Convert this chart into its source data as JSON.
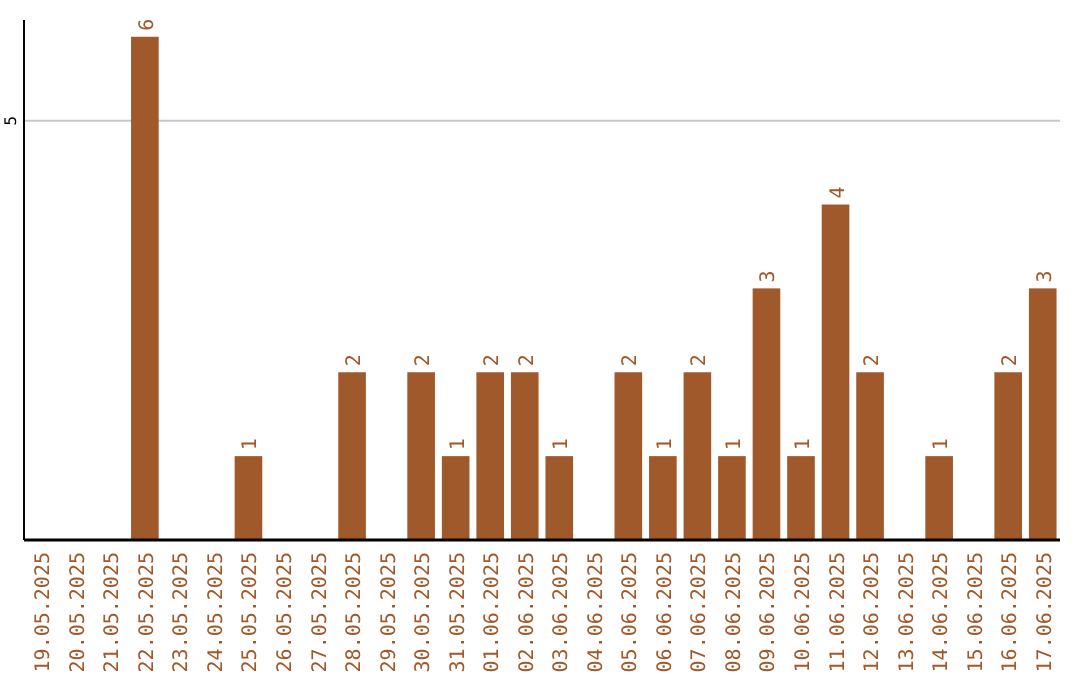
{
  "chart_data": {
    "type": "bar",
    "categories": [
      "19.05.2025",
      "20.05.2025",
      "21.05.2025",
      "22.05.2025",
      "23.05.2025",
      "24.05.2025",
      "25.05.2025",
      "26.05.2025",
      "27.05.2025",
      "28.05.2025",
      "29.05.2025",
      "30.05.2025",
      "31.05.2025",
      "01.06.2025",
      "02.06.2025",
      "03.06.2025",
      "04.06.2025",
      "05.06.2025",
      "06.06.2025",
      "07.06.2025",
      "08.06.2025",
      "09.06.2025",
      "10.06.2025",
      "11.06.2025",
      "12.06.2025",
      "13.06.2025",
      "14.06.2025",
      "15.06.2025",
      "16.06.2025",
      "17.06.2025"
    ],
    "values": [
      0,
      0,
      0,
      6,
      0,
      0,
      1,
      0,
      0,
      2,
      0,
      2,
      1,
      2,
      2,
      1,
      0,
      2,
      1,
      2,
      1,
      3,
      1,
      4,
      2,
      0,
      1,
      0,
      2,
      3
    ],
    "value_labels": [
      null,
      null,
      null,
      "6",
      null,
      null,
      "1",
      null,
      null,
      "2",
      null,
      "2",
      "1",
      "2",
      "2",
      "1",
      null,
      "2",
      "1",
      "2",
      "1",
      "3",
      "1",
      "4",
      "2",
      null,
      "1",
      null,
      "2",
      "3"
    ],
    "color": "#a0592a",
    "ylim": [
      0,
      6.2
    ],
    "yticks": [
      5
    ],
    "grid": "y"
  }
}
